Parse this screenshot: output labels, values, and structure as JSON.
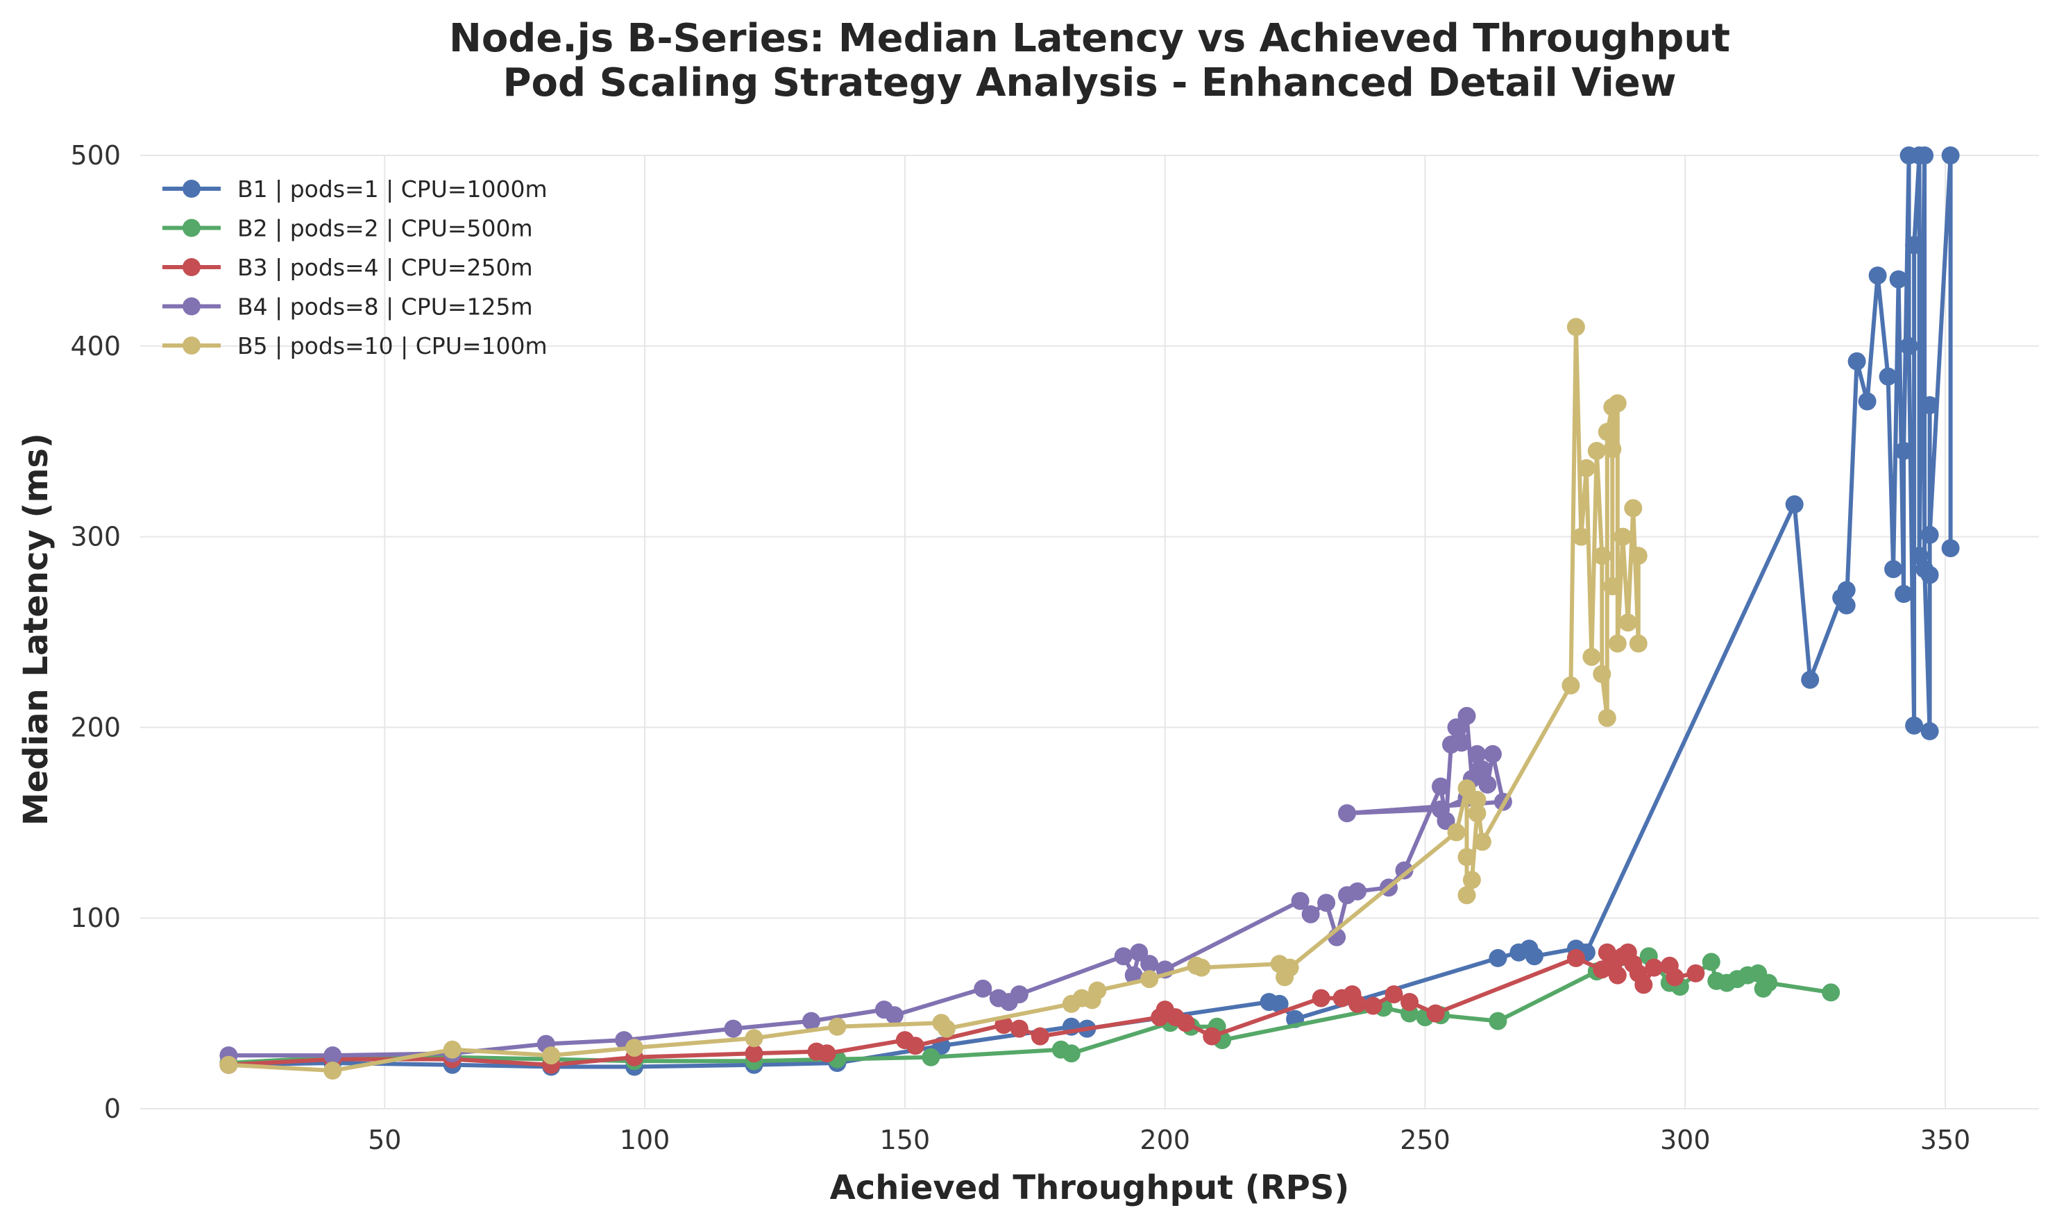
{
  "chart_data": {
    "type": "line",
    "title": "Node.js B-Series: Median Latency vs Achieved Throughput",
    "subtitle": "Pod Scaling Strategy Analysis - Enhanced Detail View",
    "xlabel": "Achieved Throughput (RPS)",
    "ylabel": "Median Latency (ms)",
    "xlim": [
      3,
      368
    ],
    "ylim": [
      0,
      500
    ],
    "xticks": [
      50,
      100,
      150,
      200,
      250,
      300,
      350
    ],
    "yticks": [
      0,
      100,
      200,
      300,
      400,
      500
    ],
    "grid": true,
    "legend_position": "top-left",
    "series": [
      {
        "name": "B1 | pods=1 | CPU=1000m",
        "color": "#4c72b0",
        "points": [
          [
            20,
            23
          ],
          [
            40,
            24
          ],
          [
            63,
            23
          ],
          [
            82,
            22
          ],
          [
            98,
            22
          ],
          [
            121,
            23
          ],
          [
            137,
            24
          ],
          [
            157,
            33
          ],
          [
            182,
            43
          ],
          [
            185,
            42
          ],
          [
            220,
            56
          ],
          [
            222,
            55
          ],
          [
            225,
            47
          ],
          [
            264,
            79
          ],
          [
            268,
            82
          ],
          [
            270,
            84
          ],
          [
            271,
            80
          ],
          [
            279,
            84
          ],
          [
            281,
            82
          ],
          [
            321,
            317
          ],
          [
            324,
            225
          ],
          [
            330,
            268
          ],
          [
            331,
            272
          ],
          [
            331,
            264
          ],
          [
            333,
            392
          ],
          [
            335,
            371
          ],
          [
            337,
            437
          ],
          [
            339,
            384
          ],
          [
            340,
            283
          ],
          [
            341,
            435
          ],
          [
            342,
            270
          ],
          [
            342,
            345
          ],
          [
            343,
            500
          ],
          [
            343,
            400
          ],
          [
            344,
            201
          ],
          [
            344,
            453
          ],
          [
            345,
            500
          ],
          [
            345,
            290
          ],
          [
            346,
            500
          ],
          [
            346,
            283
          ],
          [
            347,
            198
          ],
          [
            347,
            369
          ],
          [
            347,
            280
          ],
          [
            347,
            301
          ],
          [
            351,
            500
          ],
          [
            351,
            294
          ]
        ]
      },
      {
        "name": "B2 | pods=2 | CPU=500m",
        "color": "#55a868",
        "points": [
          [
            20,
            24
          ],
          [
            40,
            27
          ],
          [
            63,
            27
          ],
          [
            82,
            26
          ],
          [
            98,
            25
          ],
          [
            121,
            25
          ],
          [
            137,
            26
          ],
          [
            155,
            27
          ],
          [
            180,
            31
          ],
          [
            182,
            29
          ],
          [
            201,
            45
          ],
          [
            205,
            43
          ],
          [
            210,
            43
          ],
          [
            211,
            36
          ],
          [
            242,
            53
          ],
          [
            247,
            50
          ],
          [
            250,
            48
          ],
          [
            253,
            49
          ],
          [
            264,
            46
          ],
          [
            283,
            72
          ],
          [
            293,
            80
          ],
          [
            297,
            66
          ],
          [
            299,
            64
          ],
          [
            305,
            77
          ],
          [
            306,
            67
          ],
          [
            308,
            66
          ],
          [
            310,
            68
          ],
          [
            312,
            70
          ],
          [
            314,
            71
          ],
          [
            315,
            63
          ],
          [
            316,
            66
          ],
          [
            328,
            61
          ]
        ]
      },
      {
        "name": "B3 | pods=4 | CPU=250m",
        "color": "#c44e52",
        "points": [
          [
            20,
            23
          ],
          [
            40,
            26
          ],
          [
            63,
            26
          ],
          [
            82,
            23
          ],
          [
            98,
            27
          ],
          [
            121,
            29
          ],
          [
            133,
            30
          ],
          [
            135,
            29
          ],
          [
            150,
            36
          ],
          [
            152,
            33
          ],
          [
            169,
            44
          ],
          [
            172,
            42
          ],
          [
            176,
            38
          ],
          [
            199,
            48
          ],
          [
            200,
            52
          ],
          [
            202,
            48
          ],
          [
            204,
            45
          ],
          [
            209,
            38
          ],
          [
            230,
            58
          ],
          [
            234,
            58
          ],
          [
            236,
            60
          ],
          [
            237,
            55
          ],
          [
            240,
            54
          ],
          [
            244,
            60
          ],
          [
            247,
            56
          ],
          [
            252,
            50
          ],
          [
            279,
            79
          ],
          [
            284,
            73
          ],
          [
            285,
            82
          ],
          [
            286,
            75
          ],
          [
            287,
            70
          ],
          [
            288,
            80
          ],
          [
            289,
            82
          ],
          [
            290,
            76
          ],
          [
            291,
            71
          ],
          [
            292,
            65
          ],
          [
            294,
            74
          ],
          [
            297,
            75
          ],
          [
            298,
            69
          ],
          [
            302,
            71
          ]
        ]
      },
      {
        "name": "B4 | pods=8 | CPU=125m",
        "color": "#8172b2",
        "points": [
          [
            20,
            28
          ],
          [
            40,
            28
          ],
          [
            63,
            29
          ],
          [
            81,
            34
          ],
          [
            96,
            36
          ],
          [
            117,
            42
          ],
          [
            132,
            46
          ],
          [
            146,
            52
          ],
          [
            148,
            49
          ],
          [
            165,
            63
          ],
          [
            168,
            58
          ],
          [
            170,
            56
          ],
          [
            172,
            60
          ],
          [
            192,
            80
          ],
          [
            194,
            70
          ],
          [
            195,
            82
          ],
          [
            197,
            76
          ],
          [
            200,
            73
          ],
          [
            226,
            109
          ],
          [
            228,
            102
          ],
          [
            231,
            108
          ],
          [
            233,
            90
          ],
          [
            235,
            112
          ],
          [
            237,
            114
          ],
          [
            243,
            116
          ],
          [
            246,
            125
          ],
          [
            253,
            169
          ],
          [
            254,
            151
          ],
          [
            255,
            191
          ],
          [
            256,
            200
          ],
          [
            257,
            192
          ],
          [
            258,
            206
          ],
          [
            259,
            173
          ],
          [
            260,
            186
          ],
          [
            261,
            178
          ],
          [
            262,
            170
          ],
          [
            263,
            186
          ],
          [
            265,
            161
          ],
          [
            235,
            155
          ],
          [
            253,
            157
          ],
          [
            258,
            163
          ]
        ]
      },
      {
        "name": "B5 | pods=10 | CPU=100m",
        "color": "#ccb974",
        "points": [
          [
            20,
            23
          ],
          [
            40,
            20
          ],
          [
            63,
            31
          ],
          [
            82,
            28
          ],
          [
            98,
            32
          ],
          [
            121,
            37
          ],
          [
            137,
            43
          ],
          [
            157,
            45
          ],
          [
            158,
            42
          ],
          [
            182,
            55
          ],
          [
            184,
            58
          ],
          [
            186,
            57
          ],
          [
            187,
            62
          ],
          [
            197,
            68
          ],
          [
            206,
            75
          ],
          [
            207,
            74
          ],
          [
            222,
            76
          ],
          [
            223,
            69
          ],
          [
            224,
            74
          ],
          [
            256,
            145
          ],
          [
            258,
            168
          ],
          [
            258,
            132
          ],
          [
            258,
            112
          ],
          [
            259,
            120
          ],
          [
            260,
            155
          ],
          [
            260,
            162
          ],
          [
            261,
            140
          ],
          [
            278,
            222
          ],
          [
            279,
            410
          ],
          [
            280,
            300
          ],
          [
            281,
            336
          ],
          [
            282,
            237
          ],
          [
            283,
            345
          ],
          [
            284,
            290
          ],
          [
            284,
            228
          ],
          [
            285,
            205
          ],
          [
            285,
            355
          ],
          [
            286,
            368
          ],
          [
            286,
            274
          ],
          [
            286,
            346
          ],
          [
            287,
            370
          ],
          [
            287,
            244
          ],
          [
            288,
            300
          ],
          [
            289,
            255
          ],
          [
            290,
            315
          ],
          [
            291,
            244
          ],
          [
            291,
            290
          ]
        ]
      }
    ]
  }
}
